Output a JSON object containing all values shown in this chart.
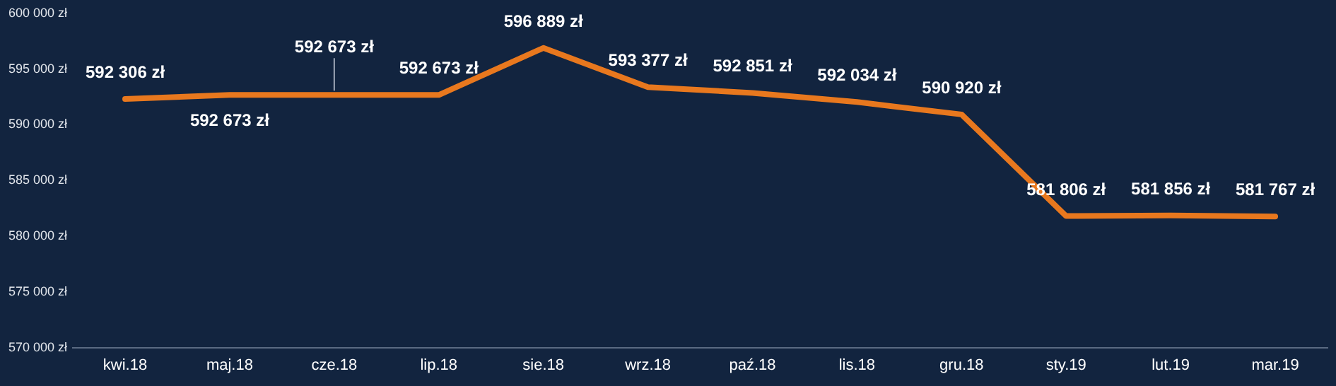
{
  "chart_data": {
    "type": "line",
    "categories": [
      "kwi.18",
      "maj.18",
      "cze.18",
      "lip.18",
      "sie.18",
      "wrz.18",
      "paź.18",
      "lis.18",
      "gru.18",
      "sty.19",
      "lut.19",
      "mar.19"
    ],
    "series": [
      {
        "color": "#e8781e",
        "values": [
          592306,
          592673,
          592673,
          592673,
          596889,
          593377,
          592851,
          592034,
          590920,
          581806,
          581856,
          581767
        ],
        "value_labels": [
          "592 306 zł",
          "592 673 zł",
          "592 673 zł",
          "592 673 zł",
          "596 889 zł",
          "593 377 zł",
          "592 851 zł",
          "592 034 zł",
          "590 920 zł",
          "581 806 zł",
          "581 856 zł",
          "581 767 zł"
        ]
      }
    ],
    "ylim": [
      570000,
      600000
    ],
    "yticks": [
      {
        "value": 570000,
        "label": "570 000 zł"
      },
      {
        "value": 575000,
        "label": "575 000 zł"
      },
      {
        "value": 580000,
        "label": "580 000 zł"
      },
      {
        "value": 585000,
        "label": "585 000 zł"
      },
      {
        "value": 590000,
        "label": "590 000 zł"
      },
      {
        "value": 595000,
        "label": "595 000 zł"
      },
      {
        "value": 600000,
        "label": "600 000 zł"
      }
    ],
    "grid": false,
    "legend": false,
    "marker": "none",
    "line_style": "solid"
  }
}
